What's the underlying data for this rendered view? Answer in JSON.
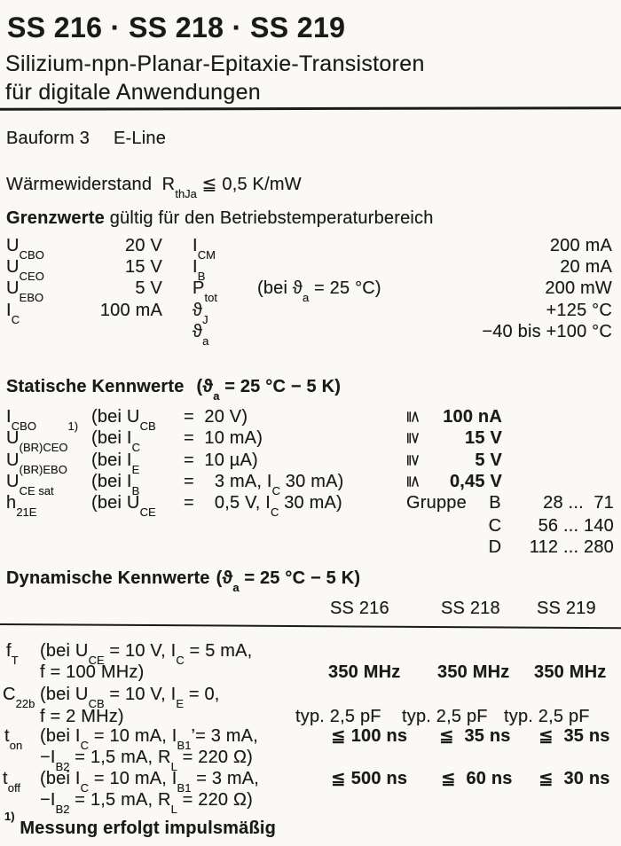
{
  "doc": {
    "title": "SS 216 · SS 218 · SS 219",
    "subtitle1": "Silizium-npn-Planar-Epitaxie-Transistoren",
    "subtitle2": "für digitale Anwendungen",
    "bauform_label": "Bauform 3",
    "bauform_value": "E-Line",
    "thermal_resistance": "Wärmewiderstand  R_thJa_ ≦ 0,5 K/mW",
    "footnote": "^1)^ Messung erfolgt impulsmäßig"
  },
  "limits": {
    "heading_bold": "Grenzwerte",
    "heading_rest": " gültig für den Betriebstemperaturbereich",
    "rows": [
      {
        "sym": "U_CBO_",
        "val": "20 V",
        "sym2": "I_CM_",
        "cond": "",
        "val2": "200 mA"
      },
      {
        "sym": "U_CEO_",
        "val": "15 V",
        "sym2": "I_B_",
        "cond": "",
        "val2": "20 mA"
      },
      {
        "sym": "U_EBO_",
        "val": "5 V",
        "sym2": "P_tot_",
        "cond": "(bei ϑ_a_ = 25 °C)",
        "val2": "200 mW"
      },
      {
        "sym": "I_C_",
        "val": "100 mA",
        "sym2": "ϑ_J_",
        "cond": "",
        "val2": "+125 °C"
      },
      {
        "sym": "",
        "val": "",
        "sym2": "ϑ_a_",
        "cond": "",
        "val2": "−40 bis +100 °C"
      }
    ]
  },
  "static_section": {
    "heading_bold": "Statische Kennwerte",
    "heading_cond": "(ϑ_a_ = 25 °C − 5 K)",
    "rows": [
      {
        "sym": "I_CBO_",
        "cond_l": "(bei U_CB_",
        "cond_r": "=  20 V)",
        "rel": "≦",
        "val": "100 nA"
      },
      {
        "sym": "U_(BR)CEO_^1)^",
        "cond_l": "(bei I_C_",
        "cond_r": "=  10 mA)",
        "rel": "≧",
        "val": "15 V"
      },
      {
        "sym": "U_(BR)EBO_",
        "cond_l": "(bei I_E_",
        "cond_r": "=  10 µA)",
        "rel": "≧",
        "val": "5 V"
      },
      {
        "sym": "U_CE sat_",
        "cond_l": "(bei I_B_",
        "cond_r": "=    3 mA, I_C_ 30 mA)",
        "rel": "≦",
        "val": "0,45 V"
      },
      {
        "sym": "h_21E_",
        "cond_l": "(bei U_CE_",
        "cond_r": "=    0,5 V, I_C_ 30 mA)",
        "group_label": "Gruppe",
        "group": "B",
        "range": "28 ...  71"
      },
      {
        "group": "C",
        "range": "56 ... 140"
      },
      {
        "group": "D",
        "range": "112 ... 280"
      }
    ]
  },
  "dynamic_section": {
    "heading_bold": "Dynamische Kennwerte",
    "heading_cond": "(ϑ_a_ = 25 °C − 5 K)",
    "columns": [
      "SS 216",
      "SS 218",
      "SS 219"
    ],
    "rows": [
      {
        "sym": "f_T_",
        "cond1": "(bei U_CE_ = 10 V, I_C_ = 5 mA,",
        "cond2": "f = 100 MHz)",
        "v1": "350 MHz",
        "v2": "350 MHz",
        "v3": "350 MHz"
      },
      {
        "sym": "C_22b_",
        "cond1": "(bei U_CB_ = 10 V, I_E_ = 0,",
        "cond2": "f = 2 MHz)",
        "v1": "typ. 2,5 pF",
        "v2": "typ. 2,5 pF",
        "v3": "typ. 2,5 pF"
      },
      {
        "sym": "t_on_",
        "cond1": "(bei I_C_ = 10 mA, I_B1_’= 3 mA,",
        "cond2": "−I_B2_ = 1,5 mA, R_L_ = 220 Ω)",
        "v1": "≦ 100 ns",
        "v2": "≦  35 ns",
        "v3": "≦  35 ns"
      },
      {
        "sym": "t_off_",
        "cond1": "(bei I_C_ = 10 mA, I_B1_ = 3 mA,",
        "cond2": "−I_B2_ = 1,5 mA, R_L_ = 220 Ω)",
        "v1": "≦ 500 ns",
        "v2": "≦  60 ns",
        "v3": "≦  30 ns"
      }
    ]
  }
}
